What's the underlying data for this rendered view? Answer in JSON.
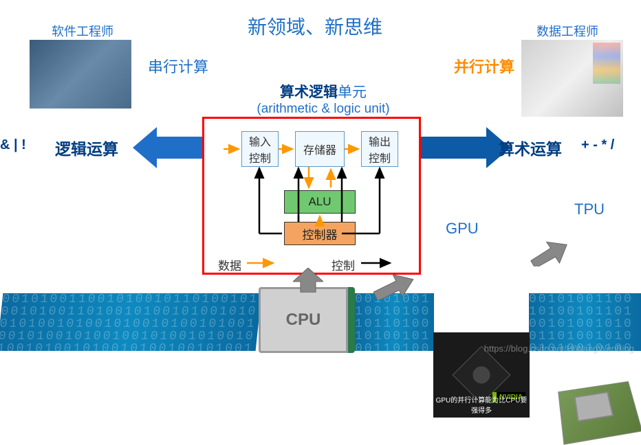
{
  "title": "新领域、新思维",
  "labels": {
    "sw_engineer": "软件工程师",
    "data_engineer": "数据工程师",
    "serial_compute": "串行计算",
    "parallel_compute": "并行计算",
    "alu_title_cn": "算术逻辑单元",
    "alu_title_en": "(arithmetic & logic unit)",
    "logic_op": "逻辑运算",
    "logic_symbols": "& | !",
    "arith_op": "算术运算",
    "arith_symbols": "+ - * /",
    "gpu": "GPU",
    "tpu": "TPU",
    "cpu": "CPU",
    "nvidia": "NVIDIA",
    "gpu_caption": "GPU的并行计算能力比CPU要强得多"
  },
  "alu_diagram": {
    "input_ctrl": "输入\n控制",
    "storage": "存储器",
    "output_ctrl": "输出\n控制",
    "alu": "ALU",
    "controller": "控制器",
    "data_label": "数据",
    "ctrl_label": "控制"
  },
  "colors": {
    "title_blue": "#1f6fc9",
    "dark_blue": "#003d82",
    "orange": "#ff8c00",
    "red_border": "#ff0000",
    "arrow_data": "#ff9800",
    "arrow_ctrl": "#000000",
    "alu_green": "#70c870",
    "ctrl_orange": "#f4a460",
    "unit_blue": "#f0f8ff"
  },
  "watermark": "https://blog.csdn.net/HiWangWenBing",
  "binfill": "001010011001010010110100101001010011010010100101001010010100101001010010100101001001010010100100101001010010100101001010010100100101001010010100101001"
}
